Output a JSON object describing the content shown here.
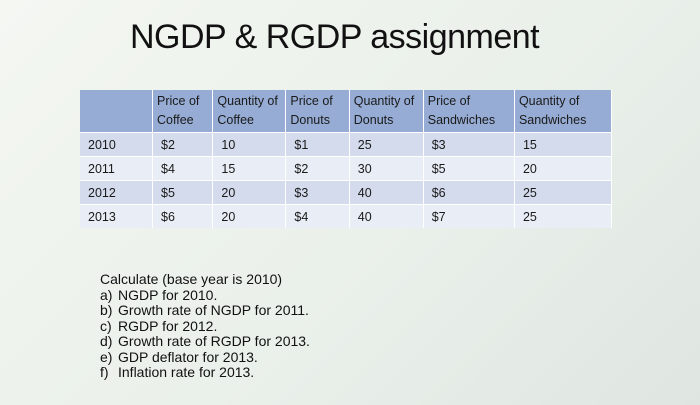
{
  "header": {
    "title": "NGDP & RGDP assignment"
  },
  "table": {
    "columns": [
      "Price of Coffee",
      "Quantity of Coffee",
      "Price of Donuts",
      "Quantity of Donuts",
      "Price of Sandwiches",
      "Quantity of Sandwiches"
    ],
    "rows": [
      [
        "2010",
        "$2",
        "10",
        "$1",
        "25",
        "$3",
        "15"
      ],
      [
        "2011",
        "$4",
        "15",
        "$2",
        "30",
        "$5",
        "20"
      ],
      [
        "2012",
        "$5",
        "20",
        "$3",
        "40",
        "$6",
        "25"
      ],
      [
        "2013",
        "$6",
        "20",
        "$4",
        "40",
        "$7",
        "25"
      ]
    ]
  },
  "instructions": {
    "intro": "Calculate (base year is 2010)",
    "items": [
      {
        "marker": "a)",
        "text": "NGDP for 2010."
      },
      {
        "marker": "b)",
        "text": "Growth rate of NGDP for 2011."
      },
      {
        "marker": "c)",
        "text": "RGDP for 2012."
      },
      {
        "marker": "d)",
        "text": "Growth rate of RGDP for 2013."
      },
      {
        "marker": "e)",
        "text": "GDP deflator for 2013."
      },
      {
        "marker": "f)",
        "text": "Inflation rate for 2013."
      }
    ]
  }
}
